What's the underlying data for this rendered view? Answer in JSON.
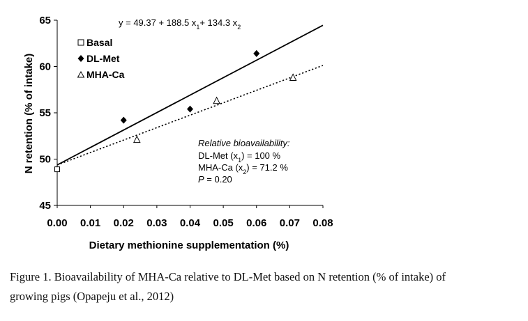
{
  "chart_data": {
    "type": "scatter",
    "xlabel": "Dietary methionine supplementation (%)",
    "ylabel": "N retention (% of intake)",
    "xlim": [
      0,
      0.08
    ],
    "ylim": [
      45,
      65
    ],
    "x_ticks": [
      "0.00",
      "0.01",
      "0.02",
      "0.03",
      "0.04",
      "0.05",
      "0.06",
      "0.07",
      "0.08"
    ],
    "y_ticks": [
      "45",
      "50",
      "55",
      "60",
      "65"
    ],
    "equation": {
      "prefix": "y = 49.37 + 188.5 x",
      "sub1": "1",
      "mid": "+ 134.3 x",
      "sub2": "2"
    },
    "series": [
      {
        "name": "Basal",
        "marker": "square-open",
        "points": [
          [
            0.0,
            48.9
          ]
        ]
      },
      {
        "name": "DL-Met",
        "marker": "diamond-filled",
        "points": [
          [
            0.02,
            54.2
          ],
          [
            0.04,
            55.4
          ],
          [
            0.06,
            61.4
          ]
        ]
      },
      {
        "name": "MHA-Ca",
        "marker": "triangle-open",
        "points": [
          [
            0.024,
            52.1
          ],
          [
            0.048,
            56.3
          ],
          [
            0.071,
            58.8
          ]
        ]
      }
    ],
    "fit_lines": [
      {
        "series": "DL-Met",
        "style": "solid",
        "intercept": 49.37,
        "slope": 188.5
      },
      {
        "series": "MHA-Ca",
        "style": "dotted",
        "intercept": 49.37,
        "slope": 134.3
      }
    ],
    "annotation": {
      "title": "Relative bioavailability:",
      "line1": {
        "a": "DL-Met (x",
        "sub": "1",
        "b": ")  = 100 %"
      },
      "line2": {
        "a": "MHA-Ca (x",
        "sub": "2",
        "b": ") =  71.2 %"
      },
      "line3": {
        "p": "P",
        "b": "  =  0.20"
      }
    }
  },
  "caption": {
    "line1": "Figure 1. Bioavailability of MHA-Ca relative to DL-Met based on N retention (% of intake) of",
    "line2": "growing pigs (Opapeju et al., 2012)"
  }
}
